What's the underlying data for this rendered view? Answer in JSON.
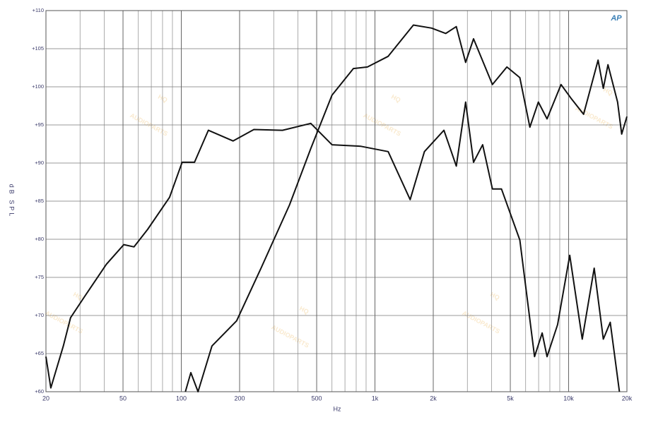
{
  "chart_data": {
    "type": "line",
    "x_label": "Hz",
    "y_label": "dB SPL",
    "logo": "AP",
    "watermark": [
      "HQ",
      "AUDIOPARTS"
    ],
    "xscale": "log",
    "grid": true,
    "xlim": [
      20,
      20000
    ],
    "ylim": [
      60,
      110
    ],
    "xticks": [
      20,
      50,
      100,
      200,
      500,
      {
        "value": 1000,
        "label": "1k"
      },
      {
        "value": 2000,
        "label": "2k"
      },
      {
        "value": 5000,
        "label": "5k"
      },
      {
        "value": 10000,
        "label": "10k"
      },
      {
        "value": 20000,
        "label": "20k"
      }
    ],
    "x_minor_ticks": [
      30,
      40,
      60,
      70,
      80,
      90,
      300,
      400,
      600,
      700,
      800,
      900,
      3000,
      4000,
      6000,
      7000,
      8000,
      9000
    ],
    "yticks": [
      {
        "value": 60,
        "label": "+60"
      },
      {
        "value": 65,
        "label": "+65"
      },
      {
        "value": 70,
        "label": "+70"
      },
      {
        "value": 75,
        "label": "+75"
      },
      {
        "value": 80,
        "label": "+80"
      },
      {
        "value": 85,
        "label": "+85"
      },
      {
        "value": 90,
        "label": "+90"
      },
      {
        "value": 95,
        "label": "+95"
      },
      {
        "value": 100,
        "label": "+100"
      },
      {
        "value": 105,
        "label": "+105"
      },
      {
        "value": 110,
        "label": "+110"
      }
    ],
    "series": [
      {
        "color": "#111111",
        "x": [
          20,
          21.2,
          24.6,
          26.8,
          31.7,
          41,
          50.5,
          57,
          67,
          87,
          101,
          117,
          138,
          185,
          237,
          333,
          466,
          600,
          842,
          1170,
          1520,
          1800,
          2270,
          2630,
          2940,
          3230,
          3600,
          4040,
          4500,
          5600,
          6670,
          7300,
          7740,
          8770,
          10130,
          11760,
          13550,
          15100,
          16400,
          18300
        ],
        "values": [
          64.6,
          60.5,
          66,
          69.7,
          72.5,
          76.7,
          79.3,
          79,
          81.3,
          85.5,
          90.1,
          90.1,
          94.3,
          92.9,
          94.4,
          94.3,
          95.2,
          92.4,
          92.2,
          91.5,
          85.2,
          91.5,
          94.3,
          89.6,
          98,
          90.1,
          92.4,
          86.6,
          86.6,
          79.9,
          64.6,
          67.7,
          64.6,
          68.8,
          77.9,
          66.9,
          76.2,
          66.9,
          69.1,
          60
        ]
      },
      {
        "color": "#111111",
        "x": [
          105,
          112,
          122,
          144,
          193,
          258,
          362,
          466,
          600,
          774,
          915,
          1170,
          1580,
          1960,
          2320,
          2630,
          2940,
          3230,
          4040,
          4800,
          5600,
          6310,
          6980,
          7740,
          9140,
          10360,
          11950,
          14200,
          15100,
          15970,
          17900,
          18800,
          20000
        ],
        "values": [
          60,
          62.5,
          60,
          66,
          69.3,
          76.2,
          84.5,
          91.9,
          98.9,
          102.4,
          102.6,
          104,
          108.1,
          107.7,
          107,
          107.9,
          103.2,
          106.3,
          100.3,
          102.6,
          101.2,
          94.7,
          98,
          95.8,
          100.3,
          98.4,
          96.4,
          103.5,
          99.8,
          102.9,
          98,
          93.8,
          96.1
        ]
      }
    ]
  }
}
